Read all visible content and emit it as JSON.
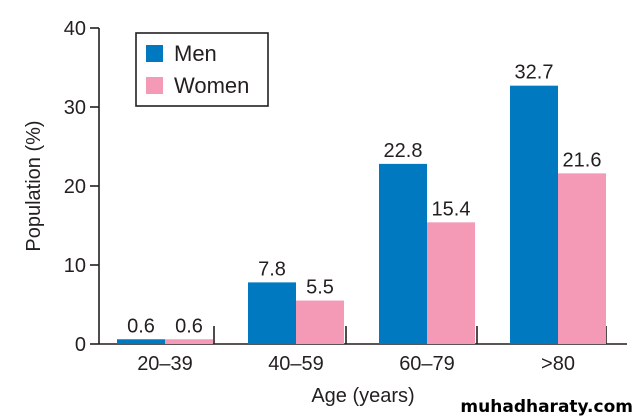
{
  "chart_data": {
    "type": "bar",
    "categories": [
      "20–39",
      "40–59",
      "60–79",
      ">80"
    ],
    "series": [
      {
        "name": "Men",
        "values": [
          0.6,
          7.8,
          22.8,
          32.7
        ],
        "color": "#0079c1"
      },
      {
        "name": "Women",
        "values": [
          0.6,
          5.5,
          15.4,
          21.6
        ],
        "color": "#f49ab6"
      }
    ],
    "data_labels": [
      [
        "0.6",
        "7.8",
        "22.8",
        "32.7"
      ],
      [
        "0.6",
        "5.5",
        "15.4",
        "21.6"
      ]
    ],
    "xlabel": "Age (years)",
    "ylabel": "Population (%)",
    "ylim": [
      0,
      40
    ],
    "yticks": [
      0,
      10,
      20,
      30,
      40
    ],
    "ytick_labels": [
      "0",
      "10",
      "20",
      "30",
      "40"
    ],
    "grid": false,
    "legend_position": "top-left"
  },
  "watermark": "muhadharaty.com"
}
